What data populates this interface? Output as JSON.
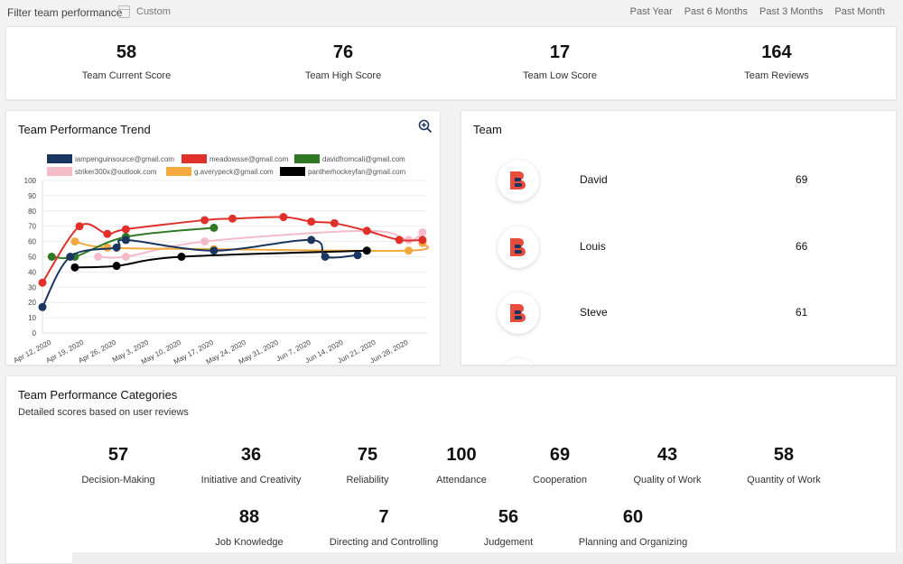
{
  "filter": {
    "title": "Filter team performance",
    "custom_label": "Custom",
    "ranges": [
      "Past Year",
      "Past 6 Months",
      "Past 3 Months",
      "Past Month"
    ]
  },
  "stats": [
    {
      "value": "58",
      "label": "Team Current Score"
    },
    {
      "value": "76",
      "label": "Team High Score"
    },
    {
      "value": "17",
      "label": "Team Low Score"
    },
    {
      "value": "164",
      "label": "Team Reviews"
    }
  ],
  "trend": {
    "title": "Team Performance Trend",
    "zoom_icon": "zoom-in-icon"
  },
  "chart_data": {
    "type": "line",
    "title": "Team Performance Trend",
    "xlabel": "",
    "ylabel": "",
    "ylim": [
      0,
      100
    ],
    "yticks": [
      "0",
      "10",
      "20",
      "30",
      "40",
      "50",
      "60",
      "70",
      "80",
      "90",
      "100"
    ],
    "x_ticks": [
      "Apr 12, 2020",
      "Apr 19, 2020",
      "Apr 26, 2020",
      "May 3, 2020",
      "May 10, 2020",
      "May 17, 2020",
      "May 24, 2020",
      "May 31, 2020",
      "Jun 7, 2020",
      "Jun 14, 2020",
      "Jun 21, 2020",
      "Jun 28, 2020"
    ],
    "x_range": [
      "Apr 10, 2020",
      "Jul 2, 2020"
    ],
    "grid": true,
    "legend_position": "top",
    "series": [
      {
        "name": "iampenguinsource@gmail.com",
        "color": "#1a3660",
        "points": [
          [
            "Apr 10, 2020",
            17
          ],
          [
            "Apr 16, 2020",
            50
          ],
          [
            "Apr 26, 2020",
            56
          ],
          [
            "Apr 28, 2020",
            61
          ],
          [
            "May 17, 2020",
            54
          ],
          [
            "Jun 7, 2020",
            61
          ],
          [
            "Jun 10, 2020",
            50
          ],
          [
            "Jun 17, 2020",
            51
          ]
        ]
      },
      {
        "name": "meadowsse@gmail.com",
        "color": "#e0302c",
        "points": [
          [
            "Apr 10, 2020",
            33
          ],
          [
            "Apr 18, 2020",
            70
          ],
          [
            "Apr 24, 2020",
            65
          ],
          [
            "Apr 28, 2020",
            68
          ],
          [
            "May 15, 2020",
            74
          ],
          [
            "May 21, 2020",
            75
          ],
          [
            "Jun 1, 2020",
            76
          ],
          [
            "Jun 7, 2020",
            73
          ],
          [
            "Jun 12, 2020",
            72
          ],
          [
            "Jun 19, 2020",
            67
          ],
          [
            "Jun 26, 2020",
            61
          ],
          [
            "Jul 1, 2020",
            61
          ]
        ]
      },
      {
        "name": "davidfromcali@gmail.com",
        "color": "#2e7a24",
        "points": [
          [
            "Apr 12, 2020",
            50
          ],
          [
            "Apr 17, 2020",
            50
          ],
          [
            "Apr 28, 2020",
            63
          ],
          [
            "May 17, 2020",
            69
          ]
        ]
      },
      {
        "name": "striker300x@outlook.com",
        "color": "#f4bcc8",
        "points": [
          [
            "Apr 22, 2020",
            50
          ],
          [
            "Apr 28, 2020",
            50
          ],
          [
            "May 15, 2020",
            60
          ],
          [
            "Jun 19, 2020",
            67
          ],
          [
            "Jun 28, 2020",
            61
          ],
          [
            "Jul 1, 2020",
            66
          ]
        ]
      },
      {
        "name": "g.averypeck@gmail.com",
        "color": "#f2a93e",
        "points": [
          [
            "Apr 17, 2020",
            60
          ],
          [
            "Apr 24, 2020",
            56
          ],
          [
            "May 17, 2020",
            55
          ],
          [
            "Jun 28, 2020",
            54
          ],
          [
            "Jul 1, 2020",
            59
          ]
        ]
      },
      {
        "name": "pantherhockeyfan@gmail.com",
        "color": "#000000",
        "points": [
          [
            "Apr 17, 2020",
            43
          ],
          [
            "Apr 26, 2020",
            44
          ],
          [
            "May 10, 2020",
            50
          ],
          [
            "Jun 19, 2020",
            54
          ]
        ]
      }
    ]
  },
  "team": {
    "title": "Team",
    "members": [
      {
        "name": "David",
        "score": "69"
      },
      {
        "name": "Louis",
        "score": "66"
      },
      {
        "name": "Steve",
        "score": "61"
      }
    ]
  },
  "categories": {
    "title": "Team Performance Categories",
    "subtitle": "Detailed scores based on user reviews",
    "items": [
      {
        "value": "57",
        "label": "Decision-Making"
      },
      {
        "value": "36",
        "label": "Initiative and Creativity"
      },
      {
        "value": "75",
        "label": "Reliability"
      },
      {
        "value": "100",
        "label": "Attendance"
      },
      {
        "value": "69",
        "label": "Cooperation"
      },
      {
        "value": "43",
        "label": "Quality of Work"
      },
      {
        "value": "58",
        "label": "Quantity of Work"
      },
      {
        "value": "88",
        "label": "Job Knowledge"
      },
      {
        "value": "7",
        "label": "Directing and Controlling"
      },
      {
        "value": "56",
        "label": "Judgement"
      },
      {
        "value": "60",
        "label": "Planning and Organizing"
      }
    ]
  }
}
